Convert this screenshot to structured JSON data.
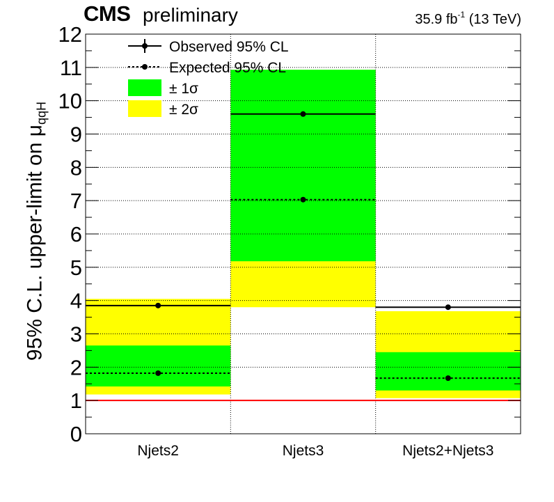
{
  "header": {
    "experiment": "CMS",
    "status": "preliminary",
    "lumi_value": "35.9 fb",
    "lumi_exp": "-1",
    "energy": "(13 TeV)"
  },
  "colors": {
    "band_1sigma": "#00ff00",
    "band_2sigma": "#ffff00",
    "reference_line": "#ff0000",
    "observed": "#000000",
    "expected": "#000000"
  },
  "chart_data": {
    "type": "bar",
    "categories": [
      "Njets2",
      "Njets3",
      "Njets2+Njets3"
    ],
    "ylabel_main": "95% C.L. upper-limit on μ",
    "ylabel_sub": "qqH",
    "ylim": [
      0,
      12
    ],
    "yticks": [
      "0",
      "1",
      "2",
      "3",
      "4",
      "5",
      "6",
      "7",
      "8",
      "9",
      "10",
      "11",
      "12"
    ],
    "grid": true,
    "legend_position": "top-left",
    "legend": [
      {
        "label": "Observed 95% CL",
        "kind": "observed"
      },
      {
        "label": "Expected 95% CL",
        "kind": "expected"
      },
      {
        "label": "± 1σ",
        "kind": "band1"
      },
      {
        "label": "± 2σ",
        "kind": "band2"
      }
    ],
    "reference_line": 1,
    "observed": [
      3.85,
      9.6,
      3.8
    ],
    "expected": [
      1.82,
      7.03,
      1.67
    ],
    "band_1sigma": [
      [
        1.42,
        2.65
      ],
      [
        5.18,
        10.93
      ],
      [
        1.3,
        2.45
      ]
    ],
    "band_2sigma": [
      [
        1.18,
        4.05
      ],
      [
        3.8,
        10.93
      ],
      [
        1.07,
        3.68
      ]
    ]
  }
}
